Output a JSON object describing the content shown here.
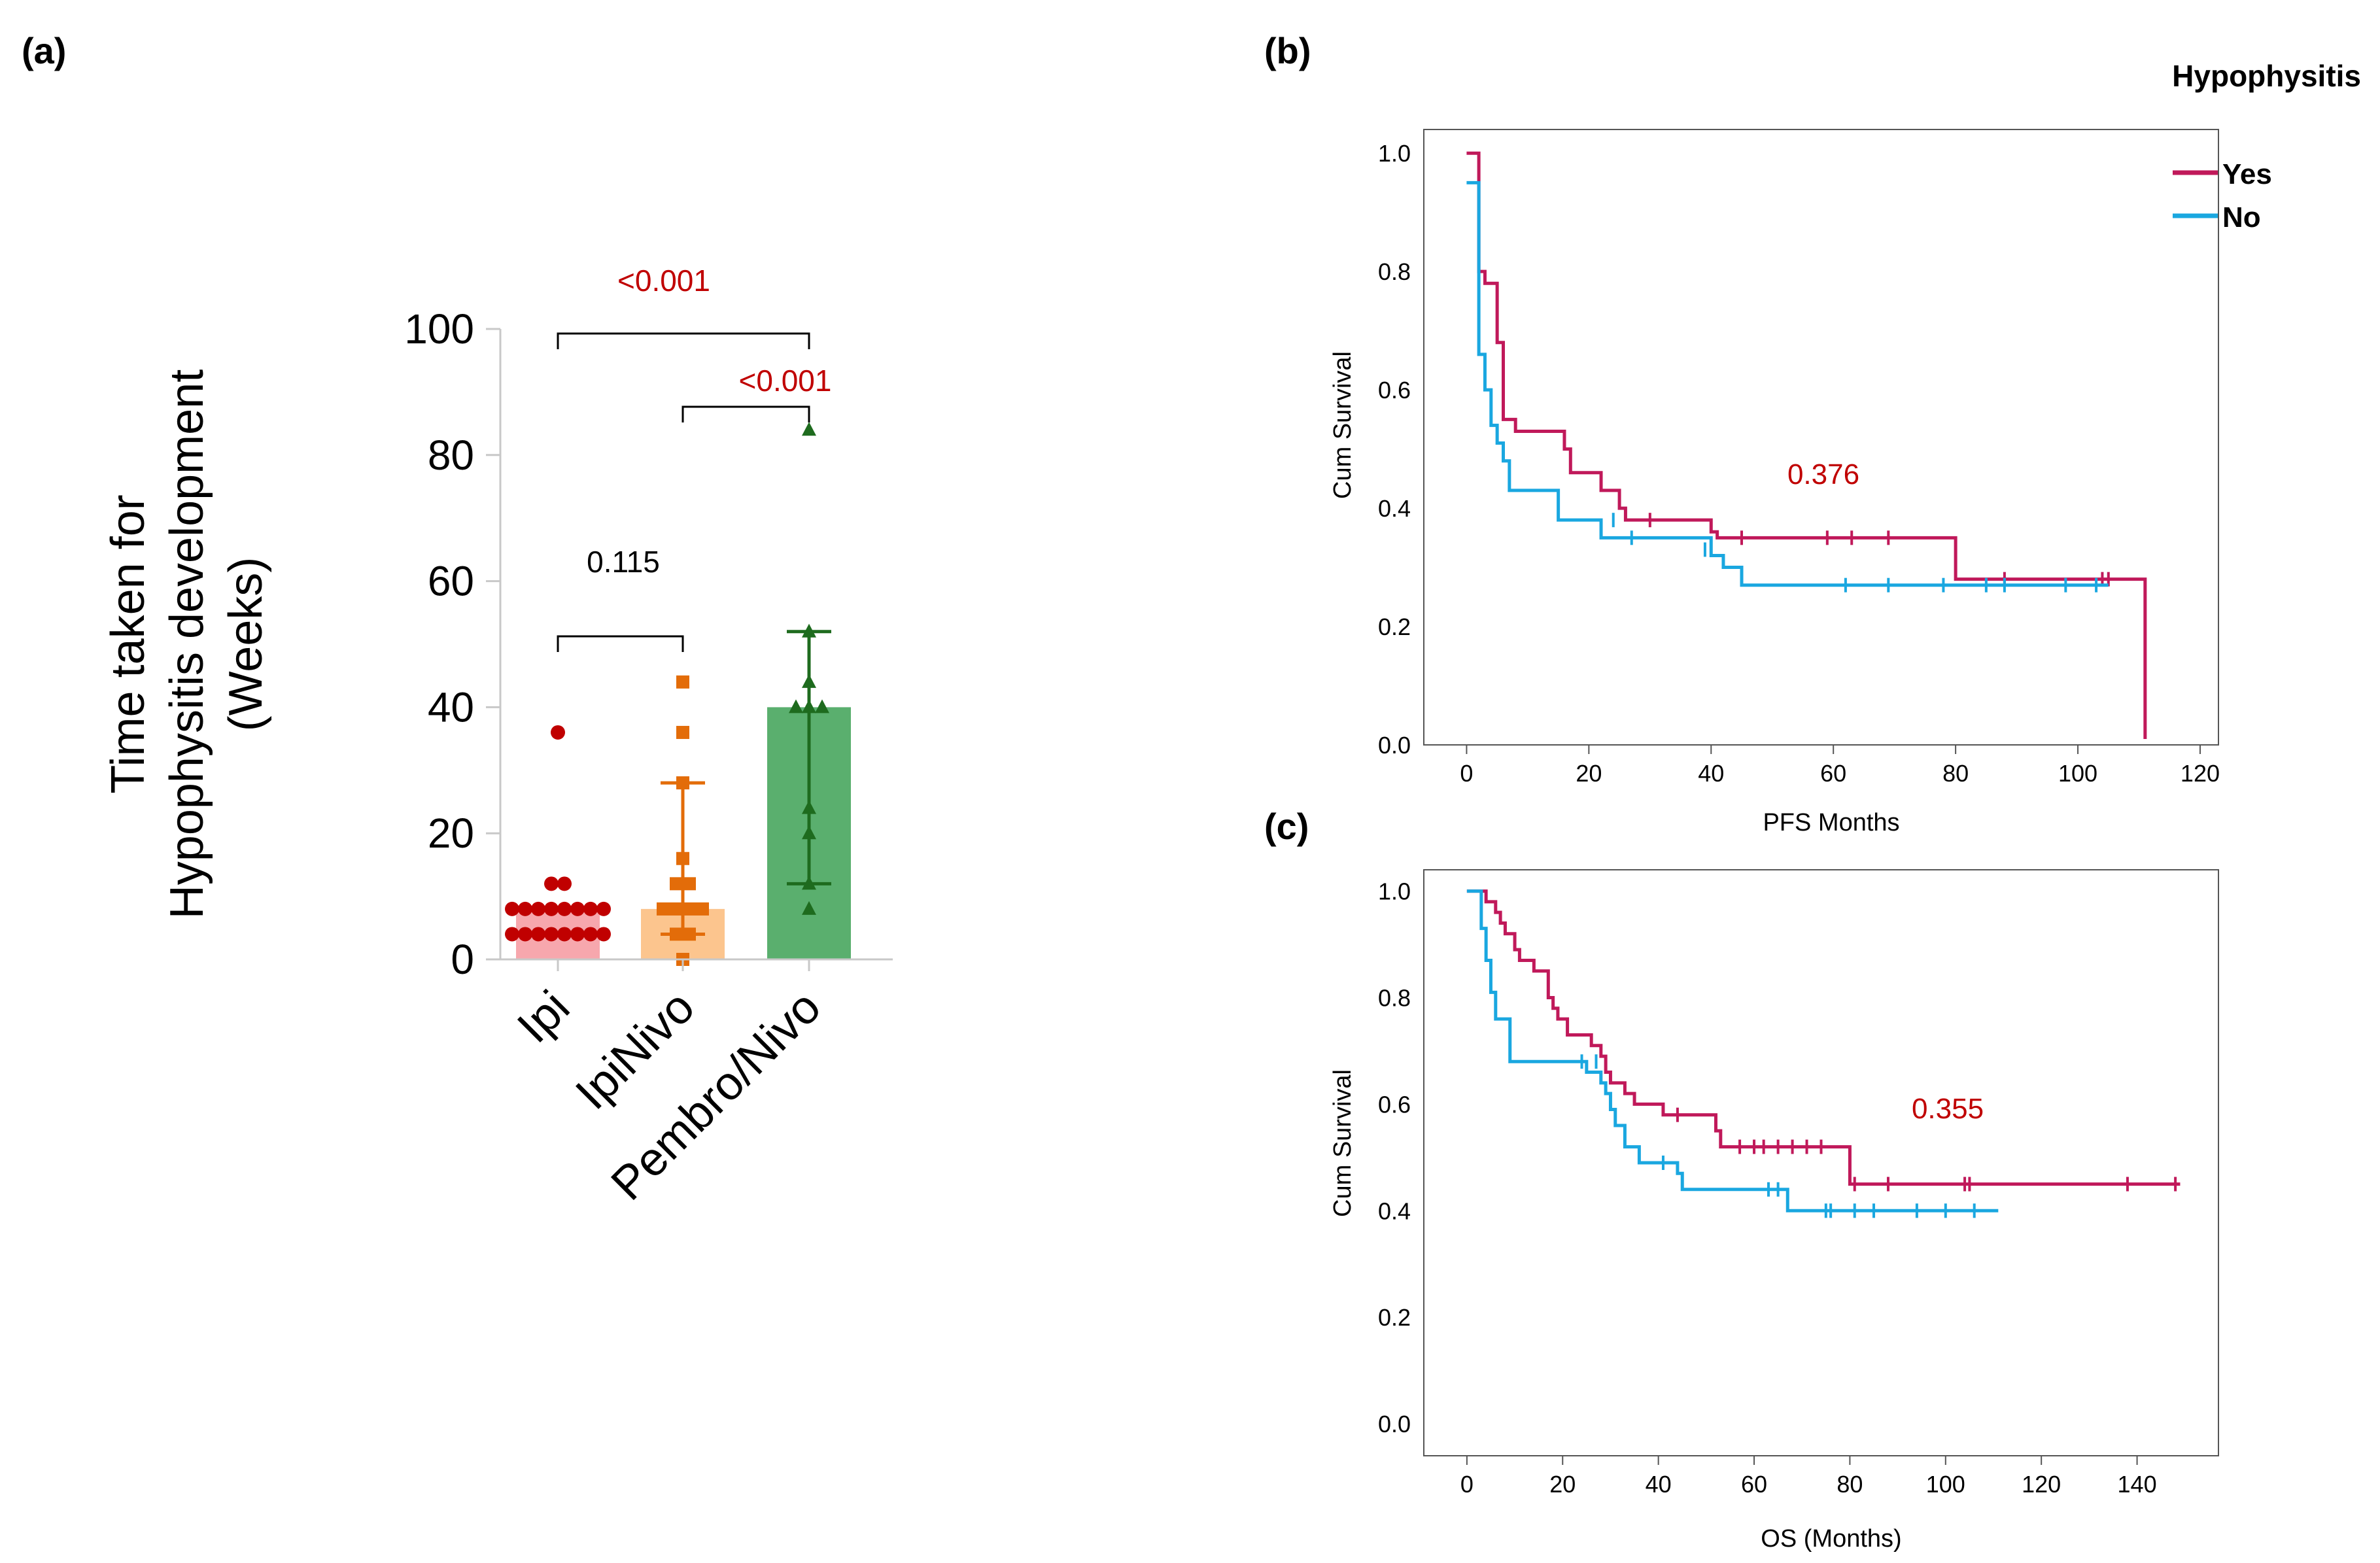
{
  "figure": {
    "legend_title": "Hypophysitis",
    "legend": [
      {
        "label": "Yes",
        "color": "#c0195a"
      },
      {
        "label": "No",
        "color": "#1aa7e0"
      }
    ]
  },
  "chart_data": [
    {
      "panel": "(a)",
      "type": "bar",
      "ylabel_line1": "Time taken for",
      "ylabel_line2": "Hypophysitis development",
      "ylabel_line3": "(Weeks)",
      "ylim": [
        0,
        100
      ],
      "yticks": [
        0,
        20,
        40,
        60,
        80,
        100
      ],
      "categories": [
        "Ipi",
        "IpiNivo",
        "Pembro/Nivo"
      ],
      "bar_values": [
        8,
        8,
        40
      ],
      "error_low": [
        null,
        4,
        12
      ],
      "error_high": [
        null,
        28,
        52
      ],
      "bar_colors": [
        "#f7a7ad",
        "#fcc58e",
        "#5aaf6e"
      ],
      "point_colors": [
        "#c00000",
        "#e36c09",
        "#1e6b1e"
      ],
      "points": [
        [
          36,
          12,
          12,
          8,
          8,
          8,
          8,
          8,
          8,
          8,
          8,
          4,
          4,
          4,
          4,
          4,
          4,
          4,
          4
        ],
        [
          44,
          36,
          28,
          16,
          12,
          12,
          8,
          8,
          8,
          8,
          4,
          4,
          0
        ],
        [
          84,
          52,
          44,
          40,
          40,
          40,
          24,
          20,
          12,
          8
        ]
      ],
      "comparisons": [
        {
          "label": "<0.001",
          "from": 0,
          "to": 2,
          "color": "#c00000"
        },
        {
          "label": "<0.001",
          "from": 1,
          "to": 2,
          "color": "#c00000"
        },
        {
          "label": "0.115",
          "from": 0,
          "to": 1,
          "color": "#000000"
        }
      ]
    },
    {
      "panel": "(b)",
      "type": "line",
      "xlabel": "PFS Months",
      "ylabel": "Cum Survival",
      "xlim": [
        -7,
        123
      ],
      "ylim": [
        0,
        1.04
      ],
      "xticks": [
        0,
        20,
        40,
        60,
        80,
        100,
        120
      ],
      "yticks": [
        "0.0",
        "0.2",
        "0.4",
        "0.6",
        "0.8",
        "1.0"
      ],
      "p_value": "0.376",
      "series": [
        {
          "name": "Yes",
          "steps": [
            [
              0,
              1.0
            ],
            [
              2,
              0.8
            ],
            [
              3,
              0.78
            ],
            [
              5,
              0.68
            ],
            [
              6,
              0.55
            ],
            [
              8,
              0.53
            ],
            [
              16,
              0.5
            ],
            [
              17,
              0.46
            ],
            [
              22,
              0.43
            ],
            [
              25,
              0.4
            ],
            [
              26,
              0.38
            ],
            [
              40,
              0.36
            ],
            [
              41,
              0.35
            ],
            [
              80,
              0.28
            ],
            [
              111,
              0.28
            ],
            [
              111,
              0.01
            ]
          ],
          "censored": [
            [
              25,
              0.41
            ],
            [
              30,
              0.38
            ],
            [
              45,
              0.35
            ],
            [
              59,
              0.35
            ],
            [
              63,
              0.35
            ],
            [
              69,
              0.35
            ],
            [
              88,
              0.28
            ],
            [
              104,
              0.28
            ],
            [
              105,
              0.28
            ]
          ]
        },
        {
          "name": "No",
          "steps": [
            [
              0,
              0.95
            ],
            [
              2,
              0.66
            ],
            [
              3,
              0.6
            ],
            [
              4,
              0.54
            ],
            [
              5,
              0.51
            ],
            [
              6,
              0.48
            ],
            [
              7,
              0.43
            ],
            [
              15,
              0.38
            ],
            [
              22,
              0.35
            ],
            [
              40,
              0.32
            ],
            [
              42,
              0.3
            ],
            [
              45,
              0.27
            ],
            [
              105,
              0.27
            ]
          ],
          "censored": [
            [
              24,
              0.38
            ],
            [
              27,
              0.35
            ],
            [
              39,
              0.33
            ],
            [
              62,
              0.27
            ],
            [
              69,
              0.27
            ],
            [
              78,
              0.27
            ],
            [
              85,
              0.27
            ],
            [
              88,
              0.27
            ],
            [
              98,
              0.27
            ],
            [
              103,
              0.27
            ]
          ]
        }
      ]
    },
    {
      "panel": "(c)",
      "type": "line",
      "xlabel": "OS (Months)",
      "ylabel": "Cum Survival",
      "xlim": [
        -9,
        157
      ],
      "ylim": [
        -0.06,
        1.04
      ],
      "xticks": [
        0,
        20,
        40,
        60,
        80,
        100,
        120,
        140
      ],
      "yticks": [
        "0.0",
        "0.2",
        "0.4",
        "0.6",
        "0.8",
        "1.0"
      ],
      "p_value": "0.355",
      "series": [
        {
          "name": "Yes",
          "steps": [
            [
              0,
              1.0
            ],
            [
              4,
              0.98
            ],
            [
              6,
              0.96
            ],
            [
              7,
              0.94
            ],
            [
              8,
              0.92
            ],
            [
              10,
              0.89
            ],
            [
              11,
              0.87
            ],
            [
              14,
              0.85
            ],
            [
              17,
              0.8
            ],
            [
              18,
              0.78
            ],
            [
              19,
              0.76
            ],
            [
              21,
              0.73
            ],
            [
              26,
              0.71
            ],
            [
              28,
              0.69
            ],
            [
              29,
              0.66
            ],
            [
              30,
              0.64
            ],
            [
              33,
              0.62
            ],
            [
              35,
              0.6
            ],
            [
              41,
              0.58
            ],
            [
              52,
              0.55
            ],
            [
              53,
              0.52
            ],
            [
              80,
              0.45
            ],
            [
              149,
              0.45
            ]
          ],
          "censored": [
            [
              44,
              0.58
            ],
            [
              57,
              0.52
            ],
            [
              60,
              0.52
            ],
            [
              62,
              0.52
            ],
            [
              65,
              0.52
            ],
            [
              68,
              0.52
            ],
            [
              71,
              0.52
            ],
            [
              74,
              0.52
            ],
            [
              81,
              0.45
            ],
            [
              88,
              0.45
            ],
            [
              104,
              0.45
            ],
            [
              105,
              0.45
            ],
            [
              138,
              0.45
            ],
            [
              148,
              0.45
            ]
          ]
        },
        {
          "name": "No",
          "steps": [
            [
              0,
              1.0
            ],
            [
              3,
              0.93
            ],
            [
              4,
              0.87
            ],
            [
              5,
              0.81
            ],
            [
              6,
              0.76
            ],
            [
              9,
              0.68
            ],
            [
              24,
              0.68
            ],
            [
              25,
              0.66
            ],
            [
              28,
              0.64
            ],
            [
              29,
              0.62
            ],
            [
              30,
              0.59
            ],
            [
              31,
              0.56
            ],
            [
              33,
              0.52
            ],
            [
              36,
              0.49
            ],
            [
              44,
              0.47
            ],
            [
              45,
              0.44
            ],
            [
              67,
              0.4
            ],
            [
              111,
              0.4
            ]
          ],
          "censored": [
            [
              24,
              0.68
            ],
            [
              27,
              0.68
            ],
            [
              41,
              0.49
            ],
            [
              63,
              0.44
            ],
            [
              65,
              0.44
            ],
            [
              75,
              0.4
            ],
            [
              76,
              0.4
            ],
            [
              81,
              0.4
            ],
            [
              85,
              0.4
            ],
            [
              94,
              0.4
            ],
            [
              100,
              0.4
            ],
            [
              106,
              0.4
            ]
          ]
        }
      ]
    }
  ]
}
